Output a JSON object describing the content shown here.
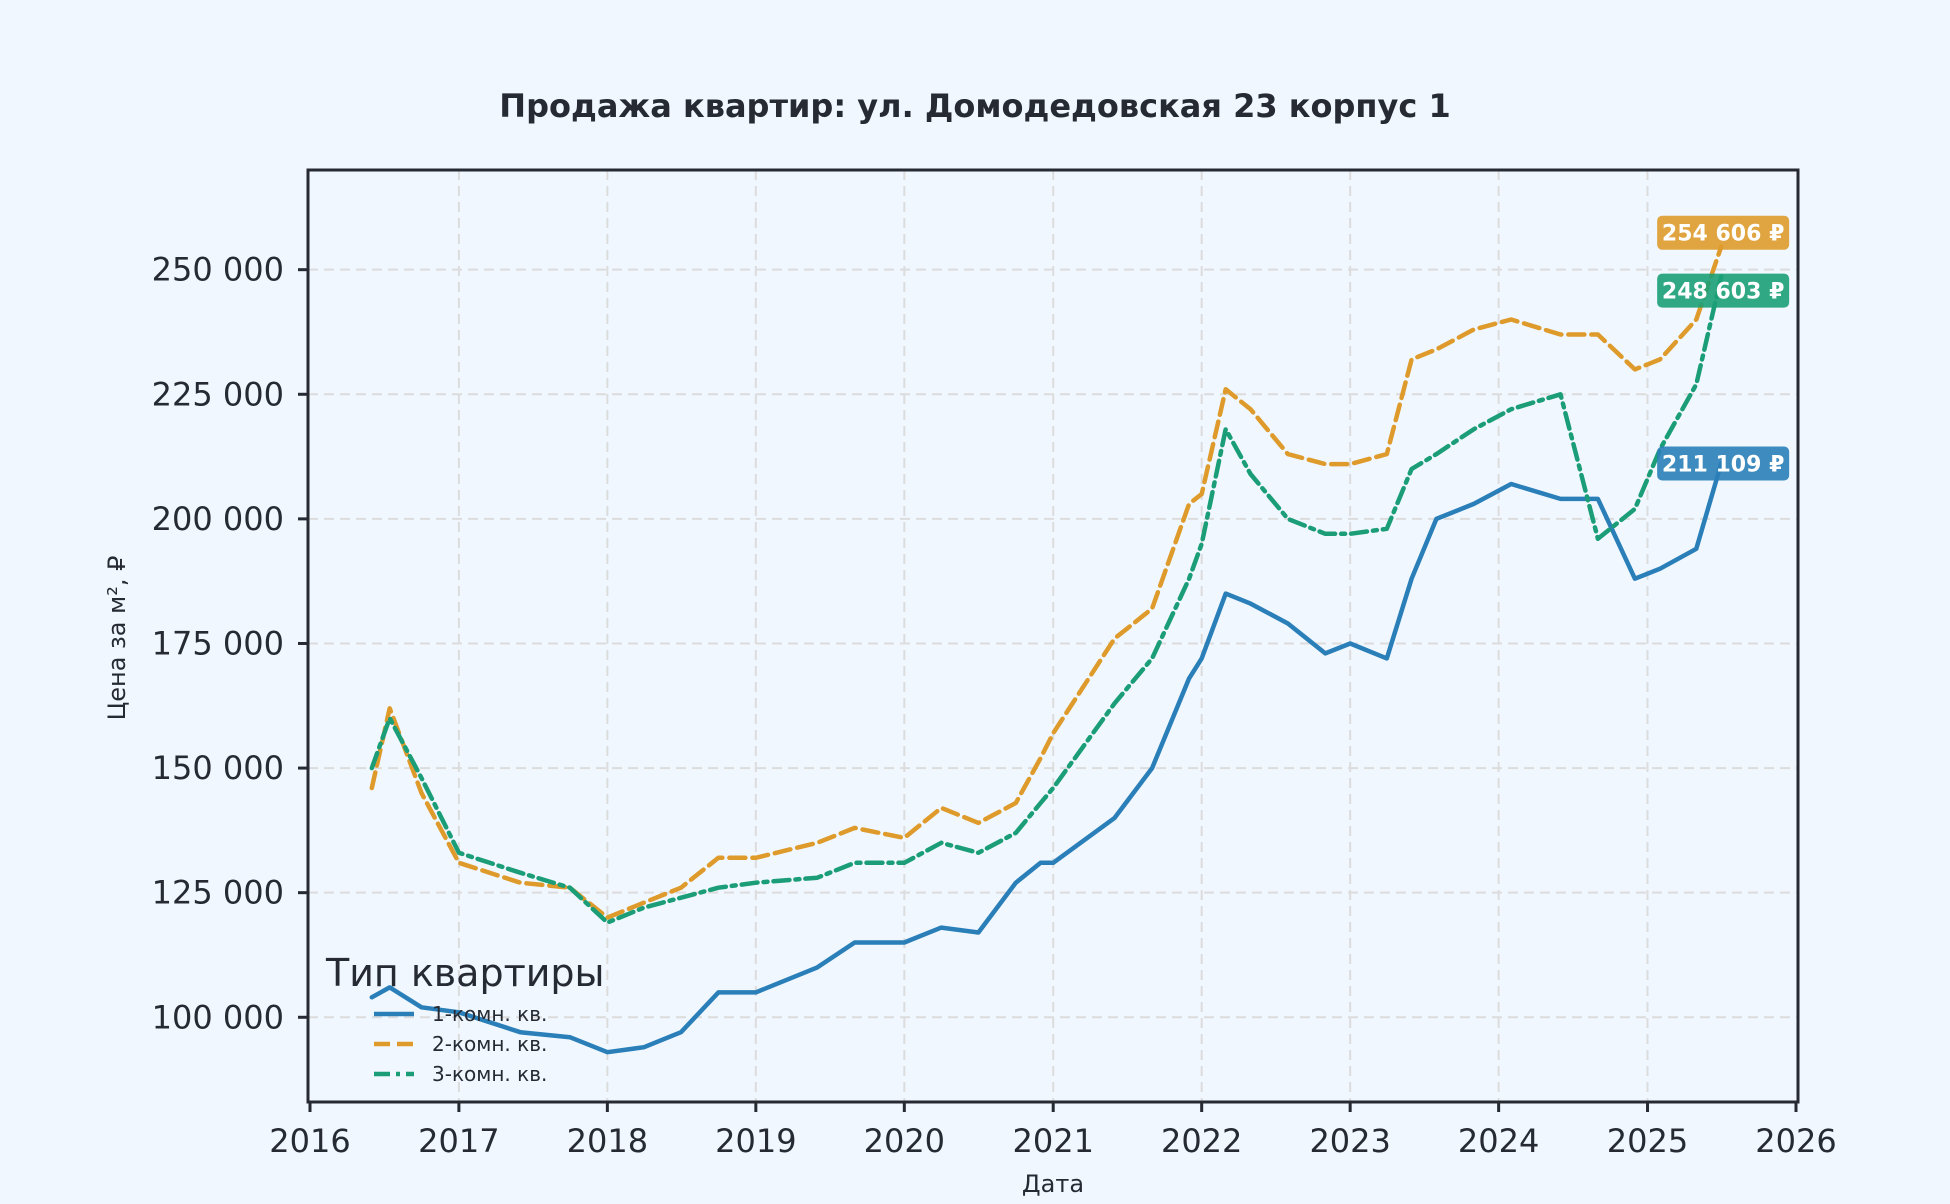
{
  "chart_data": {
    "type": "line",
    "title": "Продажа квартир: ул. Домодедовская 23 корпус 1",
    "xlabel": "Дата",
    "ylabel": "Цена за м², ₽",
    "xlim": [
      "2016-01-01",
      "2026-01-01"
    ],
    "ylim": [
      83000,
      270000
    ],
    "x_ticks": [
      "2016",
      "2017",
      "2018",
      "2019",
      "2020",
      "2021",
      "2022",
      "2023",
      "2024",
      "2025",
      "2026"
    ],
    "y_ticks": [
      "100 000",
      "125 000",
      "150 000",
      "175 000",
      "200 000",
      "225 000",
      "250 000"
    ],
    "grid": true,
    "legend": {
      "title": "Тип квартиры",
      "placement": "lower-left"
    },
    "series": [
      {
        "name": "1-комн. кв.",
        "color": "#2a7fb8",
        "last_value_label": "211 109 ₽",
        "points": [
          [
            "2016-06-01",
            104000
          ],
          [
            "2016-07-15",
            106000
          ],
          [
            "2016-10-01",
            102000
          ],
          [
            "2017-01-01",
            101000
          ],
          [
            "2017-06-01",
            97000
          ],
          [
            "2017-10-01",
            96000
          ],
          [
            "2018-01-01",
            93000
          ],
          [
            "2018-04-01",
            94000
          ],
          [
            "2018-07-01",
            97000
          ],
          [
            "2018-10-01",
            105000
          ],
          [
            "2019-01-01",
            105000
          ],
          [
            "2019-06-01",
            110000
          ],
          [
            "2019-09-01",
            115000
          ],
          [
            "2020-01-01",
            115000
          ],
          [
            "2020-04-01",
            118000
          ],
          [
            "2020-07-01",
            117000
          ],
          [
            "2020-10-01",
            127000
          ],
          [
            "2020-12-01",
            131000
          ],
          [
            "2021-01-01",
            131000
          ],
          [
            "2021-06-01",
            140000
          ],
          [
            "2021-09-01",
            150000
          ],
          [
            "2021-12-01",
            168000
          ],
          [
            "2022-01-01",
            172000
          ],
          [
            "2022-03-01",
            185000
          ],
          [
            "2022-05-01",
            183000
          ],
          [
            "2022-08-01",
            179000
          ],
          [
            "2022-11-01",
            173000
          ],
          [
            "2023-01-01",
            175000
          ],
          [
            "2023-04-01",
            172000
          ],
          [
            "2023-06-01",
            188000
          ],
          [
            "2023-08-01",
            200000
          ],
          [
            "2023-11-01",
            203000
          ],
          [
            "2024-02-01",
            207000
          ],
          [
            "2024-06-01",
            204000
          ],
          [
            "2024-09-01",
            204000
          ],
          [
            "2024-12-01",
            188000
          ],
          [
            "2025-02-01",
            190000
          ],
          [
            "2025-05-01",
            194000
          ],
          [
            "2025-07-01",
            211109
          ]
        ]
      },
      {
        "name": "2-комн. кв.",
        "color": "#de9b2b",
        "last_value_label": "254 606 ₽",
        "points": [
          [
            "2016-06-01",
            146000
          ],
          [
            "2016-07-15",
            162000
          ],
          [
            "2016-10-01",
            145000
          ],
          [
            "2017-01-01",
            131000
          ],
          [
            "2017-06-01",
            127000
          ],
          [
            "2017-10-01",
            126000
          ],
          [
            "2018-01-01",
            120000
          ],
          [
            "2018-04-01",
            123000
          ],
          [
            "2018-07-01",
            126000
          ],
          [
            "2018-10-01",
            132000
          ],
          [
            "2019-01-01",
            132000
          ],
          [
            "2019-06-01",
            135000
          ],
          [
            "2019-09-01",
            138000
          ],
          [
            "2020-01-01",
            136000
          ],
          [
            "2020-04-01",
            142000
          ],
          [
            "2020-07-01",
            139000
          ],
          [
            "2020-10-01",
            143000
          ],
          [
            "2020-12-01",
            152000
          ],
          [
            "2021-01-01",
            157000
          ],
          [
            "2021-06-01",
            176000
          ],
          [
            "2021-09-01",
            182000
          ],
          [
            "2021-12-01",
            203000
          ],
          [
            "2022-01-01",
            205000
          ],
          [
            "2022-03-01",
            226000
          ],
          [
            "2022-05-01",
            222000
          ],
          [
            "2022-08-01",
            213000
          ],
          [
            "2022-11-01",
            211000
          ],
          [
            "2023-01-01",
            211000
          ],
          [
            "2023-04-01",
            213000
          ],
          [
            "2023-06-01",
            232000
          ],
          [
            "2023-08-01",
            234000
          ],
          [
            "2023-11-01",
            238000
          ],
          [
            "2024-02-01",
            240000
          ],
          [
            "2024-06-01",
            237000
          ],
          [
            "2024-09-01",
            237000
          ],
          [
            "2024-12-01",
            230000
          ],
          [
            "2025-02-01",
            232000
          ],
          [
            "2025-05-01",
            240000
          ],
          [
            "2025-07-01",
            254606
          ]
        ]
      },
      {
        "name": "3-комн. кв.",
        "color": "#1b9e77",
        "last_value_label": "248 603 ₽",
        "points": [
          [
            "2016-06-01",
            150000
          ],
          [
            "2016-07-15",
            160000
          ],
          [
            "2016-10-01",
            148000
          ],
          [
            "2017-01-01",
            133000
          ],
          [
            "2017-06-01",
            129000
          ],
          [
            "2017-10-01",
            126000
          ],
          [
            "2018-01-01",
            119000
          ],
          [
            "2018-04-01",
            122000
          ],
          [
            "2018-07-01",
            124000
          ],
          [
            "2018-10-01",
            126000
          ],
          [
            "2019-01-01",
            127000
          ],
          [
            "2019-06-01",
            128000
          ],
          [
            "2019-09-01",
            131000
          ],
          [
            "2020-01-01",
            131000
          ],
          [
            "2020-04-01",
            135000
          ],
          [
            "2020-07-01",
            133000
          ],
          [
            "2020-10-01",
            137000
          ],
          [
            "2020-12-01",
            143000
          ],
          [
            "2021-01-01",
            146000
          ],
          [
            "2021-06-01",
            163000
          ],
          [
            "2021-09-01",
            172000
          ],
          [
            "2021-12-01",
            188000
          ],
          [
            "2022-01-01",
            195000
          ],
          [
            "2022-03-01",
            218000
          ],
          [
            "2022-05-01",
            209000
          ],
          [
            "2022-08-01",
            200000
          ],
          [
            "2022-11-01",
            197000
          ],
          [
            "2023-01-01",
            197000
          ],
          [
            "2023-04-01",
            198000
          ],
          [
            "2023-06-01",
            210000
          ],
          [
            "2023-08-01",
            213000
          ],
          [
            "2023-11-01",
            218000
          ],
          [
            "2024-02-01",
            222000
          ],
          [
            "2024-06-01",
            225000
          ],
          [
            "2024-09-01",
            196000
          ],
          [
            "2024-12-01",
            202000
          ],
          [
            "2025-02-01",
            214000
          ],
          [
            "2025-05-01",
            227000
          ],
          [
            "2025-07-01",
            248603
          ]
        ]
      }
    ]
  }
}
